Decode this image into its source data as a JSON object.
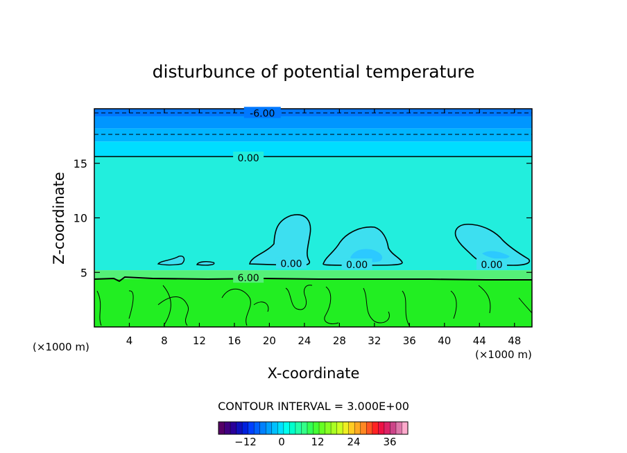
{
  "chart_data": {
    "type": "heatmap",
    "title": "disturbunce of potential temperature",
    "xlabel": "X-coordinate",
    "ylabel": "Z-coordinate",
    "x_unit_left": "(×1000 m)",
    "x_unit_right": "(×1000 m)",
    "xlim": [
      0,
      50
    ],
    "ylim": [
      0,
      20
    ],
    "x_ticks": [
      4,
      8,
      12,
      16,
      20,
      24,
      28,
      32,
      36,
      40,
      44,
      48
    ],
    "y_ticks": [
      5,
      10,
      15
    ],
    "layers": [
      {
        "z0": 0,
        "z1": 4.4,
        "value": 9,
        "color": "#22ee22"
      },
      {
        "z0": 4.4,
        "z1": 5.2,
        "value": 4.5,
        "color": "#55f078"
      },
      {
        "z0": 5.2,
        "z1": 15.6,
        "value": 1.5,
        "color": "#22eedd"
      },
      {
        "z0": 15.6,
        "z1": 17.0,
        "value": -1.5,
        "color": "#00ddff"
      },
      {
        "z0": 17.0,
        "z1": 18.2,
        "value": -3,
        "color": "#00b4ff"
      },
      {
        "z0": 18.2,
        "z1": 19.3,
        "value": -4.5,
        "color": "#0096ff"
      },
      {
        "z0": 19.3,
        "z1": 20.0,
        "value": -6,
        "color": "#0078ff"
      }
    ],
    "contour_labels": [
      {
        "text": "-6.00",
        "x": 19.2,
        "z": 19.6
      },
      {
        "text": "0.00",
        "x": 17.6,
        "z": 15.5
      },
      {
        "text": "0.00",
        "x": 22.5,
        "z": 5.8
      },
      {
        "text": "0.00",
        "x": 30.0,
        "z": 5.7
      },
      {
        "text": "0.00",
        "x": 45.4,
        "z": 5.7
      },
      {
        "text": "6.00",
        "x": 17.6,
        "z": 4.5
      }
    ],
    "contour_interval": "CONTOUR INTERVAL = 3.000E+00",
    "colorbar": {
      "range": [
        -21,
        42
      ],
      "ticks": [
        -12,
        0,
        12,
        24,
        36
      ],
      "colors": [
        "#550066",
        "#400080",
        "#2a0099",
        "#1010bb",
        "#0020dd",
        "#0040ff",
        "#0060ff",
        "#0080ff",
        "#00a0ff",
        "#00c0ff",
        "#00e0ff",
        "#00ffee",
        "#00ffcc",
        "#22ffaa",
        "#33ff88",
        "#33ff55",
        "#44ff33",
        "#66ff22",
        "#88ff22",
        "#aaff22",
        "#ccff22",
        "#eeee22",
        "#ffcc22",
        "#ffaa22",
        "#ff8822",
        "#ff5522",
        "#ff2222",
        "#ee1144",
        "#dd2266",
        "#cc4488",
        "#dd77aa",
        "#ffaacc"
      ]
    }
  }
}
